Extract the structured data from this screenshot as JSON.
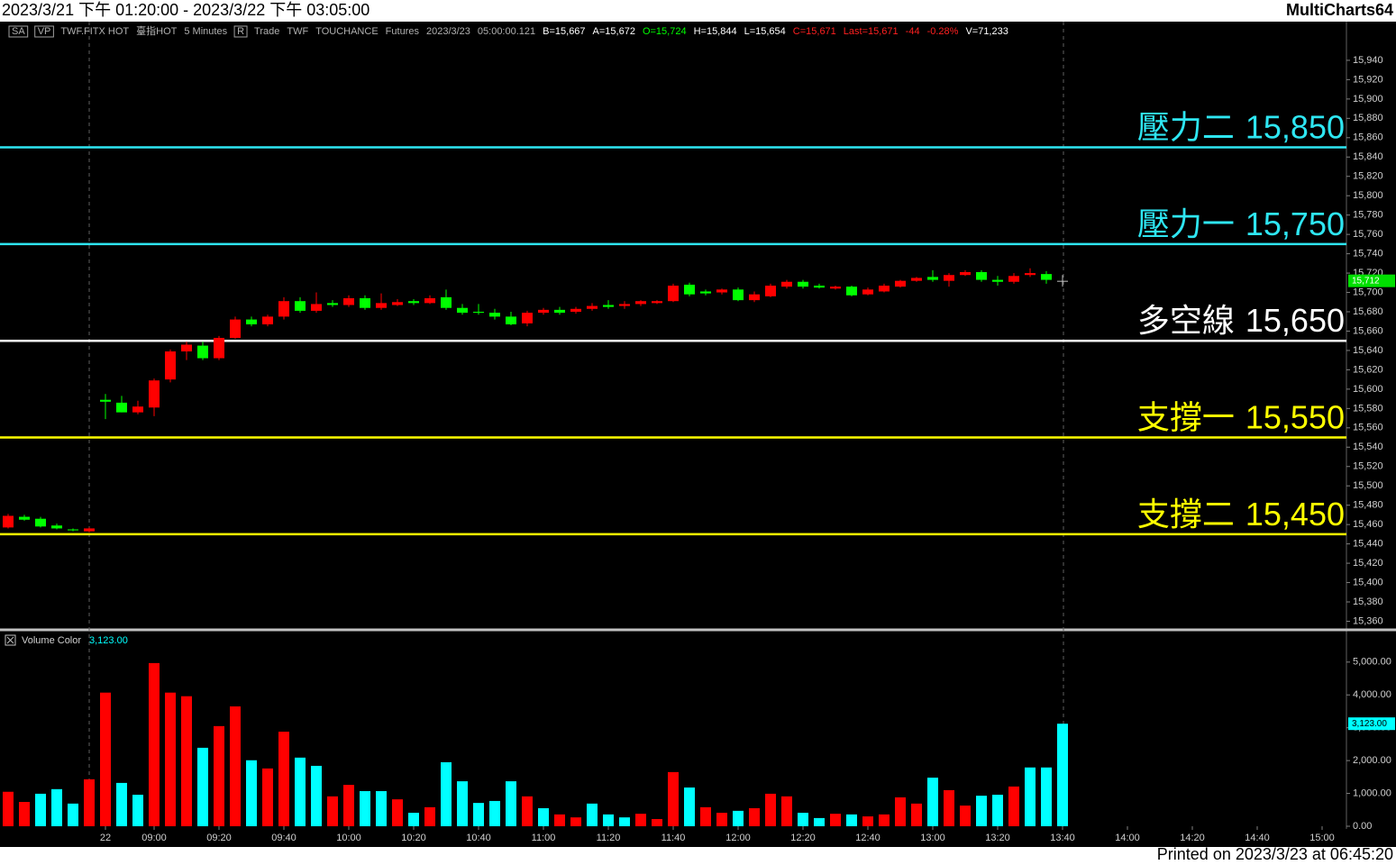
{
  "header": {
    "title": "2023/3/21 下午 01:20:00 - 2023/3/22 下午 03:05:00",
    "app": "MultiCharts64"
  },
  "status_bar": [
    {
      "text": "SA",
      "box": true
    },
    {
      "text": "VP",
      "box": true
    },
    {
      "text": "TWF.FITX HOT"
    },
    {
      "text": "臺指HOT"
    },
    {
      "text": "5 Minutes"
    },
    {
      "text": "R",
      "box": true
    },
    {
      "text": "Trade"
    },
    {
      "text": "TWF"
    },
    {
      "text": "TOUCHANCE"
    },
    {
      "text": "Futures"
    },
    {
      "text": "2023/3/23"
    },
    {
      "text": "05:00:00.121"
    },
    {
      "text": "B=15,667",
      "color": "#ffffff"
    },
    {
      "text": "A=15,672",
      "color": "#ffffff"
    },
    {
      "text": "O=15,724",
      "color": "#00ff00"
    },
    {
      "text": "H=15,844",
      "color": "#ffffff"
    },
    {
      "text": "L=15,654",
      "color": "#ffffff"
    },
    {
      "text": "C=15,671",
      "color": "#ff2020"
    },
    {
      "text": "Last=15,671",
      "color": "#ff2020"
    },
    {
      "text": "-44",
      "color": "#ff2020"
    },
    {
      "text": "-0.28%",
      "color": "#ff2020"
    },
    {
      "text": "V=71,233",
      "color": "#ffffff"
    }
  ],
  "chart_data": [
    {
      "type": "candlestick",
      "categories": [
        null,
        null,
        null,
        null,
        null,
        null,
        "22",
        null,
        null,
        "09:00",
        null,
        null,
        null,
        "09:20",
        null,
        null,
        null,
        "09:40",
        null,
        null,
        null,
        "10:00",
        null,
        null,
        null,
        "10:20",
        null,
        null,
        null,
        "10:40",
        null,
        null,
        null,
        "11:00",
        null,
        null,
        null,
        "11:20",
        null,
        null,
        null,
        "11:40",
        null,
        null,
        null,
        "12:00",
        null,
        null,
        null,
        "12:20",
        null,
        null,
        null,
        "12:40",
        null,
        null,
        null,
        "13:00",
        null,
        null,
        null,
        "13:20",
        null,
        null,
        null,
        "13:40",
        null,
        null,
        null,
        "14:00",
        null,
        null,
        null,
        "14:20",
        null,
        null,
        null,
        "14:40",
        null,
        null,
        null,
        "15:00"
      ],
      "open": [
        15457,
        15468,
        15466,
        15459,
        15455,
        15453,
        15589,
        15586,
        15576,
        15581,
        15610,
        15639,
        15645,
        15632,
        15653,
        15672,
        15667,
        15675,
        15691,
        15681,
        15689,
        15687,
        15694,
        15684,
        15687,
        15691,
        15689,
        15695,
        15684,
        15680,
        15679,
        15675,
        15668,
        15679,
        15682,
        15680,
        15683,
        15687,
        15686,
        15688,
        15689,
        15691,
        15708,
        15701,
        15700,
        15703,
        15692,
        15696,
        15706,
        15711,
        15707,
        15704,
        15706,
        15698,
        15701,
        15706,
        15712,
        15716,
        15712,
        15718,
        15721,
        15713,
        15711,
        15718,
        15719,
        15712,
        null,
        null,
        null,
        null,
        null,
        null,
        null,
        null,
        null,
        null,
        null,
        null,
        null,
        null,
        null,
        null
      ],
      "high": [
        15471,
        15470,
        15468,
        15461,
        15456,
        15457,
        15595,
        15593,
        15588,
        15611,
        15641,
        15649,
        15649,
        15655,
        15675,
        15675,
        15677,
        15695,
        15695,
        15700,
        15692,
        15697,
        15697,
        15699,
        15693,
        15693,
        15697,
        15703,
        15688,
        15688,
        15683,
        15680,
        15681,
        15684,
        15685,
        15685,
        15689,
        15692,
        15691,
        15692,
        15692,
        15709,
        15710,
        15703,
        15704,
        15705,
        15701,
        15709,
        15713,
        15713,
        15709,
        15707,
        15707,
        15705,
        15709,
        15713,
        15716,
        15723,
        15720,
        15723,
        15723,
        15717,
        15720,
        15725,
        15722,
        15718,
        null,
        null,
        null,
        null,
        null,
        null,
        null,
        null,
        null,
        null,
        null,
        null,
        null,
        null,
        null,
        null
      ],
      "low": [
        15456,
        15464,
        15457,
        15455,
        15453,
        15452,
        15569,
        15576,
        15574,
        15572,
        15607,
        15630,
        15630,
        15630,
        15652,
        15665,
        15665,
        15672,
        15679,
        15679,
        15685,
        15685,
        15682,
        15682,
        15686,
        15687,
        15688,
        15682,
        15677,
        15677,
        15672,
        15666,
        15665,
        15677,
        15677,
        15678,
        15681,
        15683,
        15683,
        15686,
        15688,
        15690,
        15696,
        15697,
        15698,
        15691,
        15690,
        15695,
        15704,
        15704,
        15704,
        15703,
        15696,
        15697,
        15700,
        15705,
        15711,
        15711,
        15706,
        15717,
        15711,
        15707,
        15709,
        15716,
        15709,
        15706,
        null,
        null,
        null,
        null,
        null,
        null,
        null,
        null,
        null,
        null,
        null,
        null,
        null,
        null,
        null,
        null
      ],
      "close": [
        15469,
        15465,
        15458,
        15456,
        15454,
        15456,
        15587,
        15576,
        15582,
        15609,
        15639,
        15646,
        15632,
        15653,
        15672,
        15667,
        15675,
        15691,
        15681,
        15688,
        15687,
        15694,
        15684,
        15689,
        15690,
        15689,
        15694,
        15684,
        15679,
        15679,
        15675,
        15667,
        15679,
        15682,
        15679,
        15683,
        15686,
        15685,
        15688,
        15691,
        15691,
        15707,
        15698,
        15699,
        15703,
        15692,
        15698,
        15707,
        15711,
        15706,
        15705,
        15706,
        15697,
        15703,
        15707,
        15712,
        15715,
        15713,
        15718,
        15721,
        15713,
        15711,
        15717,
        15720,
        15713,
        15712,
        null,
        null,
        null,
        null,
        null,
        null,
        null,
        null,
        null,
        null,
        null,
        null,
        null,
        null,
        null,
        null
      ],
      "up_color": "#ff0000",
      "down_color": "#00ff00",
      "flat_color": "#c0c0c0",
      "ylim": [
        15353,
        15980
      ],
      "yticks": [
        {
          "value": 15360,
          "label": "15,360"
        },
        {
          "value": 15380,
          "label": "15,380"
        },
        {
          "value": 15400,
          "label": "15,400"
        },
        {
          "value": 15420,
          "label": "15,420"
        },
        {
          "value": 15440,
          "label": "15,440"
        },
        {
          "value": 15460,
          "label": "15,460"
        },
        {
          "value": 15480,
          "label": "15,480"
        },
        {
          "value": 15500,
          "label": "15,500"
        },
        {
          "value": 15520,
          "label": "15,520"
        },
        {
          "value": 15540,
          "label": "15,540"
        },
        {
          "value": 15560,
          "label": "15,560"
        },
        {
          "value": 15580,
          "label": "15,580"
        },
        {
          "value": 15600,
          "label": "15,600"
        },
        {
          "value": 15620,
          "label": "15,620"
        },
        {
          "value": 15640,
          "label": "15,640"
        },
        {
          "value": 15660,
          "label": "15,660"
        },
        {
          "value": 15680,
          "label": "15,680"
        },
        {
          "value": 15700,
          "label": "15,700"
        },
        {
          "value": 15720,
          "label": "15,720"
        },
        {
          "value": 15740,
          "label": "15,740"
        },
        {
          "value": 15760,
          "label": "15,760"
        },
        {
          "value": 15780,
          "label": "15,780"
        },
        {
          "value": 15800,
          "label": "15,800"
        },
        {
          "value": 15820,
          "label": "15,820"
        },
        {
          "value": 15840,
          "label": "15,840"
        },
        {
          "value": 15860,
          "label": "15,860"
        },
        {
          "value": 15880,
          "label": "15,880"
        },
        {
          "value": 15900,
          "label": "15,900"
        },
        {
          "value": 15920,
          "label": "15,920"
        },
        {
          "value": 15940,
          "label": "15,940"
        }
      ],
      "levels": [
        {
          "name": "壓力二",
          "value": 15850,
          "label": "15,850",
          "color": "#2ee6f2"
        },
        {
          "name": "壓力一",
          "value": 15750,
          "label": "15,750",
          "color": "#2ee6f2"
        },
        {
          "name": "多空線",
          "value": 15650,
          "label": "15,650",
          "color": "#ffffff"
        },
        {
          "name": "支撐一",
          "value": 15550,
          "label": "15,550",
          "color": "#ffff00"
        },
        {
          "name": "支撐二",
          "value": 15450,
          "label": "15,450",
          "color": "#ffff00"
        }
      ],
      "last_label": "15,712",
      "last_color": "#00e000"
    },
    {
      "type": "bar",
      "name": "Volume Color",
      "legend_value": "3,123.00",
      "values": [
        1050,
        740,
        990,
        1130,
        690,
        1430,
        4070,
        1320,
        960,
        4970,
        4070,
        3960,
        2390,
        3050,
        3650,
        2010,
        1760,
        2880,
        2090,
        1840,
        910,
        1260,
        1070,
        1070,
        820,
        410,
        580,
        1950,
        1370,
        710,
        770,
        1370,
        910,
        550,
        360,
        270,
        690,
        360,
        270,
        380,
        220,
        1650,
        1180,
        580,
        410,
        470,
        550,
        990,
        910,
        410,
        250,
        380,
        360,
        300,
        360,
        880,
        690,
        1480,
        1100,
        630,
        930,
        960,
        1210,
        1790,
        1790,
        3123,
        null,
        null,
        null,
        null,
        null,
        null,
        null,
        null,
        null,
        null,
        null,
        null,
        null,
        null,
        null,
        null
      ],
      "colors": [
        "red",
        "red",
        "cyan",
        "cyan",
        "cyan",
        "red",
        "red",
        "cyan",
        "cyan",
        "red",
        "red",
        "red",
        "cyan",
        "red",
        "red",
        "cyan",
        "red",
        "red",
        "cyan",
        "cyan",
        "red",
        "red",
        "cyan",
        "cyan",
        "red",
        "cyan",
        "red",
        "cyan",
        "cyan",
        "cyan",
        "cyan",
        "cyan",
        "red",
        "cyan",
        "red",
        "red",
        "cyan",
        "cyan",
        "cyan",
        "red",
        "red",
        "red",
        "cyan",
        "red",
        "red",
        "cyan",
        "red",
        "red",
        "red",
        "cyan",
        "cyan",
        "red",
        "cyan",
        "red",
        "red",
        "red",
        "red",
        "cyan",
        "red",
        "red",
        "cyan",
        "cyan",
        "red",
        "cyan",
        "cyan",
        "cyan"
      ],
      "ylim": [
        0,
        5900
      ],
      "yticks": [
        {
          "value": 0,
          "label": "0.00"
        },
        {
          "value": 1000,
          "label": "1,000.00"
        },
        {
          "value": 2000,
          "label": "2,000.00"
        },
        {
          "value": 3000,
          "label": "3,000.00"
        },
        {
          "value": 4000,
          "label": "4,000.00"
        },
        {
          "value": 5000,
          "label": "5,000.00"
        }
      ],
      "last_label": "3,123.00",
      "last_color": "#00ffff"
    }
  ],
  "footer": "Printed on 2023/3/23 at 06:45:20"
}
